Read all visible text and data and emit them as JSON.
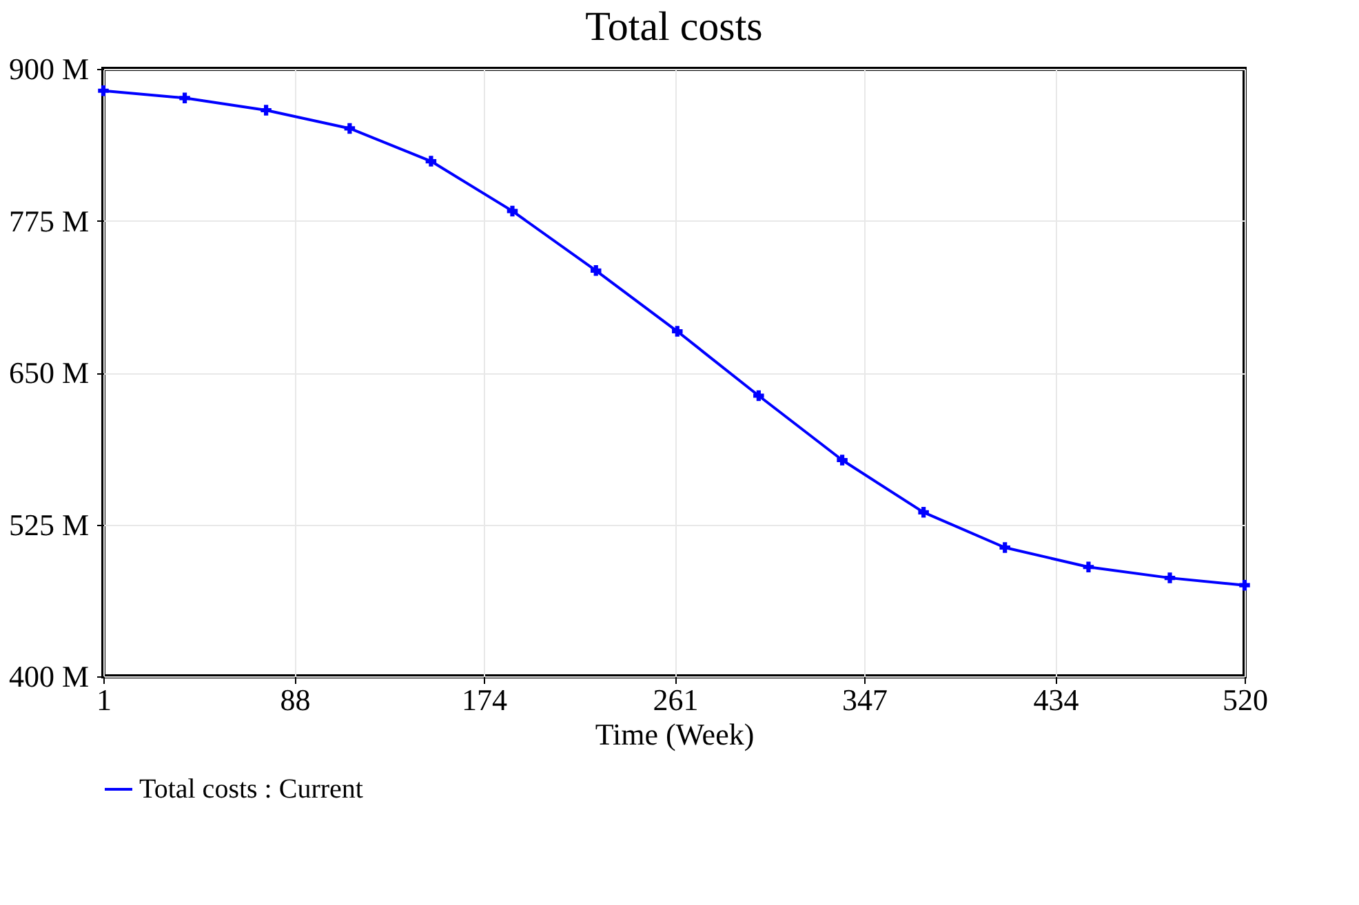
{
  "chart_data": {
    "type": "line",
    "title": "Total costs",
    "xlabel": "Time (Week)",
    "x": [
      1,
      38,
      75,
      113,
      150,
      187,
      225,
      262,
      299,
      337,
      374,
      411,
      449,
      486,
      520
    ],
    "series": [
      {
        "name": "Total costs : Current",
        "color": "#0000ff",
        "values": [
          882,
          876,
          866,
          851,
          824,
          783,
          734,
          684,
          631,
          578,
          535,
          506,
          490,
          481,
          475
        ]
      }
    ],
    "xlim": [
      1,
      520
    ],
    "xticks": [
      1,
      88,
      174,
      261,
      347,
      434,
      520
    ],
    "ylim": [
      400,
      900
    ],
    "yticks": [
      {
        "value": 400,
        "label": "400 M"
      },
      {
        "value": 525,
        "label": "525 M"
      },
      {
        "value": 650,
        "label": "650 M"
      },
      {
        "value": 775,
        "label": "775 M"
      },
      {
        "value": 900,
        "label": "900 M"
      }
    ],
    "grid": true,
    "legend": "bottom",
    "marker": "cross",
    "line_style": "solid"
  }
}
